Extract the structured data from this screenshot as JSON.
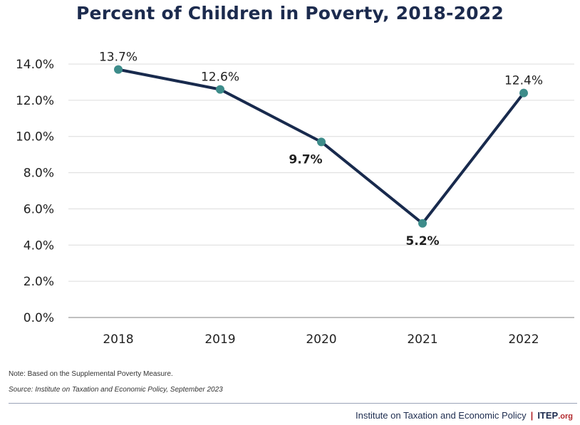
{
  "chart_data": {
    "type": "line",
    "title": "Percent of Children in Poverty, 2018-2022",
    "xlabel": "",
    "ylabel": "",
    "categories": [
      "2018",
      "2019",
      "2020",
      "2021",
      "2022"
    ],
    "series": [
      {
        "values": [
          13.7,
          12.6,
          9.7,
          5.2,
          12.4
        ]
      }
    ],
    "data_labels": [
      "13.7%",
      "12.6%",
      "9.7%",
      "5.2%",
      "12.4%"
    ],
    "data_label_bold": [
      false,
      false,
      true,
      true,
      false
    ],
    "ylim": [
      0,
      14
    ],
    "yticks": [
      0,
      2,
      4,
      6,
      8,
      10,
      12,
      14
    ],
    "ytick_labels": [
      "0.0%",
      "2.0%",
      "4.0%",
      "6.0%",
      "8.0%",
      "10.0%",
      "12.0%",
      "14.0%"
    ],
    "grid": "horizontal",
    "line_color": "#182a4d",
    "marker_color": "#3d8c8a"
  },
  "note": "Note: Based on the Supplemental Poverty Measure.",
  "source": "Source: Institute on Taxation and Economic Policy, September 2023",
  "footer": {
    "org_name": "Institute on Taxation and Economic Policy",
    "separator": "|",
    "brand": "ITEP",
    "brand_suffix": ".org"
  },
  "colors": {
    "title": "#1c2b4e",
    "brand_accent": "#b3282d"
  }
}
